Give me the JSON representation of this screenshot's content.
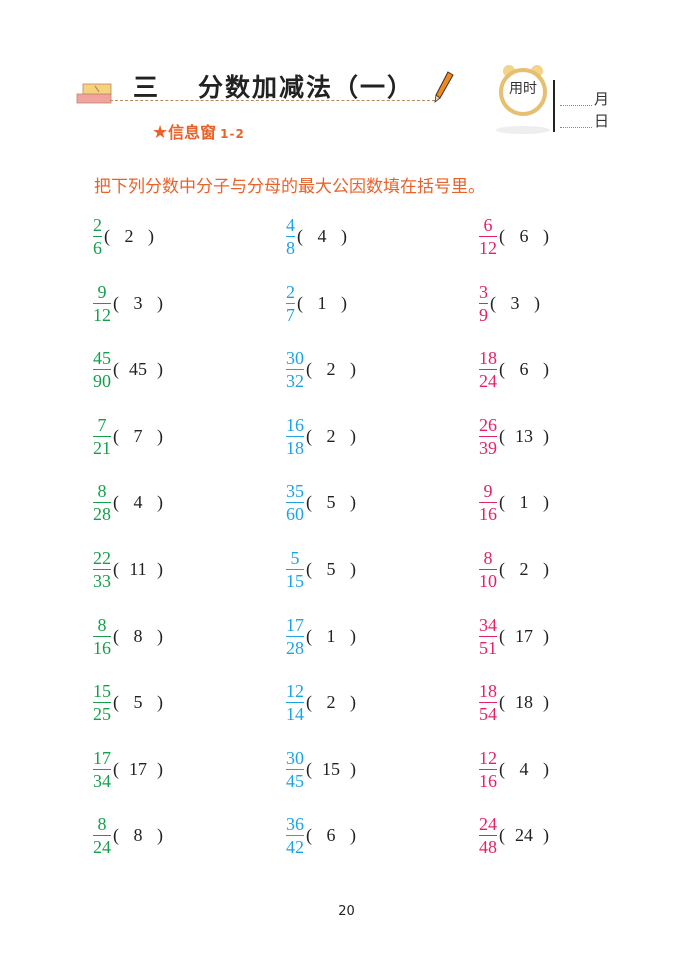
{
  "header": {
    "chapter_number": "三",
    "chapter_title": "分数加减法（一）",
    "info_label": "信息窗",
    "info_code": "1-2",
    "clock_label": "用时",
    "month_label": "月",
    "day_label": "日"
  },
  "instruction": "把下列分数中分子与分母的最大公因数填在括号里。",
  "colors": {
    "col1": "#13a04a",
    "col2": "#1aa3e6",
    "col3": "#e6206a",
    "accent": "#e8622a"
  },
  "columns": [
    [
      {
        "n": "2",
        "d": "6",
        "a": "2"
      },
      {
        "n": "9",
        "d": "12",
        "a": "3"
      },
      {
        "n": "45",
        "d": "90",
        "a": "45"
      },
      {
        "n": "7",
        "d": "21",
        "a": "7"
      },
      {
        "n": "8",
        "d": "28",
        "a": "4"
      },
      {
        "n": "22",
        "d": "33",
        "a": "11"
      },
      {
        "n": "8",
        "d": "16",
        "a": "8"
      },
      {
        "n": "15",
        "d": "25",
        "a": "5"
      },
      {
        "n": "17",
        "d": "34",
        "a": "17"
      },
      {
        "n": "8",
        "d": "24",
        "a": "8"
      }
    ],
    [
      {
        "n": "4",
        "d": "8",
        "a": "4"
      },
      {
        "n": "2",
        "d": "7",
        "a": "1"
      },
      {
        "n": "30",
        "d": "32",
        "a": "2"
      },
      {
        "n": "16",
        "d": "18",
        "a": "2"
      },
      {
        "n": "35",
        "d": "60",
        "a": "5"
      },
      {
        "n": "5",
        "d": "15",
        "a": "5"
      },
      {
        "n": "17",
        "d": "28",
        "a": "1"
      },
      {
        "n": "12",
        "d": "14",
        "a": "2"
      },
      {
        "n": "30",
        "d": "45",
        "a": "15"
      },
      {
        "n": "36",
        "d": "42",
        "a": "6"
      }
    ],
    [
      {
        "n": "6",
        "d": "12",
        "a": "6"
      },
      {
        "n": "3",
        "d": "9",
        "a": "3"
      },
      {
        "n": "18",
        "d": "24",
        "a": "6"
      },
      {
        "n": "26",
        "d": "39",
        "a": "13"
      },
      {
        "n": "9",
        "d": "16",
        "a": "1"
      },
      {
        "n": "8",
        "d": "10",
        "a": "2"
      },
      {
        "n": "34",
        "d": "51",
        "a": "17"
      },
      {
        "n": "18",
        "d": "54",
        "a": "18"
      },
      {
        "n": "12",
        "d": "16",
        "a": "4"
      },
      {
        "n": "24",
        "d": "48",
        "a": "24"
      }
    ]
  ],
  "page_number": "20"
}
